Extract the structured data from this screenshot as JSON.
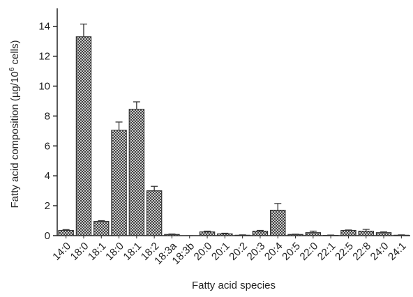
{
  "chart_data": {
    "type": "bar",
    "y_label": {
      "text": "Fatty acid composition (µg/10",
      "sup": "6",
      "tail": " cells)"
    },
    "x_label": "Fatty acid species",
    "categories": [
      "14:0",
      "18:0",
      "18:1",
      "18:0",
      "18:1",
      "18:2",
      "18:3a",
      "18:3b",
      "20:0",
      "20:1",
      "20:2",
      "20:3",
      "20:4",
      "20:5",
      "22:0",
      "22:1",
      "22:5",
      "22:8",
      "24:0",
      "24:1"
    ],
    "values": [
      0.35,
      13.3,
      0.95,
      7.05,
      8.45,
      3.0,
      0.08,
      0,
      0.25,
      0.12,
      0.03,
      0.3,
      1.7,
      0.08,
      0.2,
      0.02,
      0.35,
      0.3,
      0.2,
      0.03
    ],
    "errors": [
      0.05,
      0.85,
      0.05,
      0.55,
      0.5,
      0.3,
      0.03,
      0,
      0.05,
      0.04,
      0.02,
      0.05,
      0.45,
      0.02,
      0.1,
      0.02,
      0.03,
      0.12,
      0.05,
      0.02
    ],
    "color": "#333333",
    "ylim": [
      0,
      15.2
    ],
    "yticks": [
      0,
      2,
      4,
      6,
      8,
      10,
      12,
      14
    ]
  }
}
